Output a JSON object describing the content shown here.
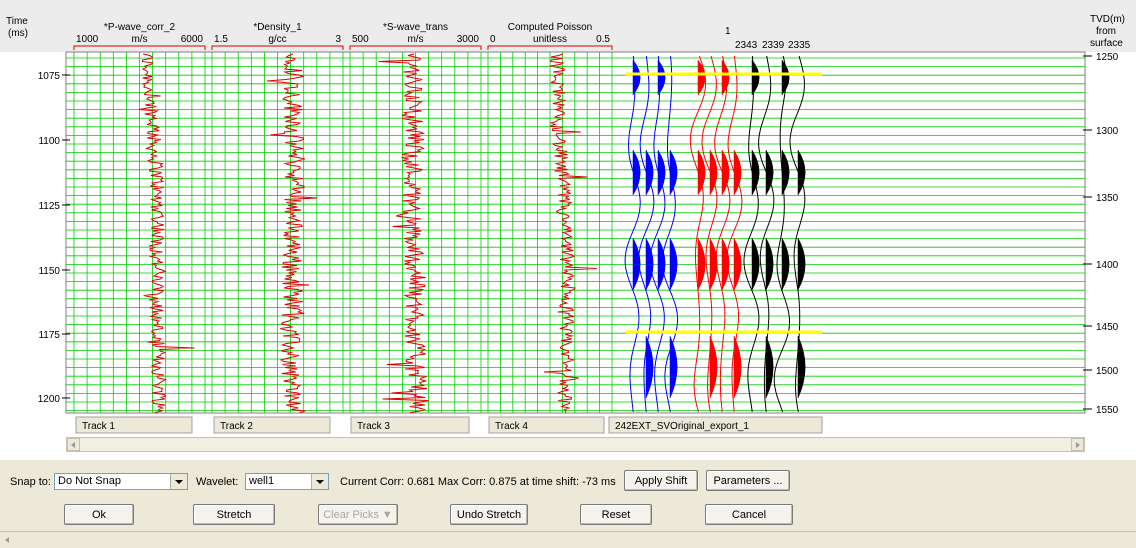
{
  "header": {
    "time_label_1": "Time",
    "time_label_2": "(ms)",
    "tvd_label_1": "TVD(m)",
    "tvd_label_2": "from",
    "tvd_label_3": "surface"
  },
  "curves": [
    {
      "name": "*P-wave_corr_2",
      "min": "1000",
      "unit": "m/s",
      "max": "6000"
    },
    {
      "name": "*Density_1",
      "min": "1.5",
      "unit": "g/cc",
      "max": "3"
    },
    {
      "name": "*S-wave_trans",
      "min": "500",
      "unit": "m/s",
      "max": "3000"
    },
    {
      "name": "Computed Poisson",
      "min": "0",
      "unit": "unitless",
      "max": "0.5"
    }
  ],
  "tracks": [
    "Track 1",
    "Track 2",
    "Track 3",
    "Track 4"
  ],
  "seismic": {
    "top_label": "1",
    "trace_labels": [
      "2343",
      "2339",
      "2335"
    ],
    "tab_label": "242EXT_SVOriginal_export_1"
  },
  "time_ticks": [
    "1075",
    "1100",
    "1125",
    "1150",
    "1175",
    "1200"
  ],
  "depth_ticks": [
    "1250",
    "1300",
    "1350",
    "1400",
    "1450",
    "1500",
    "1550"
  ],
  "colors": {
    "grid": "#00cc00",
    "log_curve": "#dd0000",
    "trace_blue": "#0000ff",
    "trace_red": "#ff0000",
    "trace_black": "#000000",
    "horizon": "#ffff00"
  },
  "controls": {
    "snap_label": "Snap to:",
    "snap_value": "Do Not Snap",
    "wavelet_label": "Wavelet:",
    "wavelet_value": "well1",
    "corr_text": "Current Corr:  0.681  Max Corr:  0.875 at time shift: -73 ms",
    "apply_shift": "Apply Shift",
    "parameters": "Parameters ...",
    "ok": "Ok",
    "stretch": "Stretch",
    "clear_picks": "Clear Picks ▼",
    "undo_stretch": "Undo Stretch",
    "reset": "Reset",
    "cancel": "Cancel"
  }
}
